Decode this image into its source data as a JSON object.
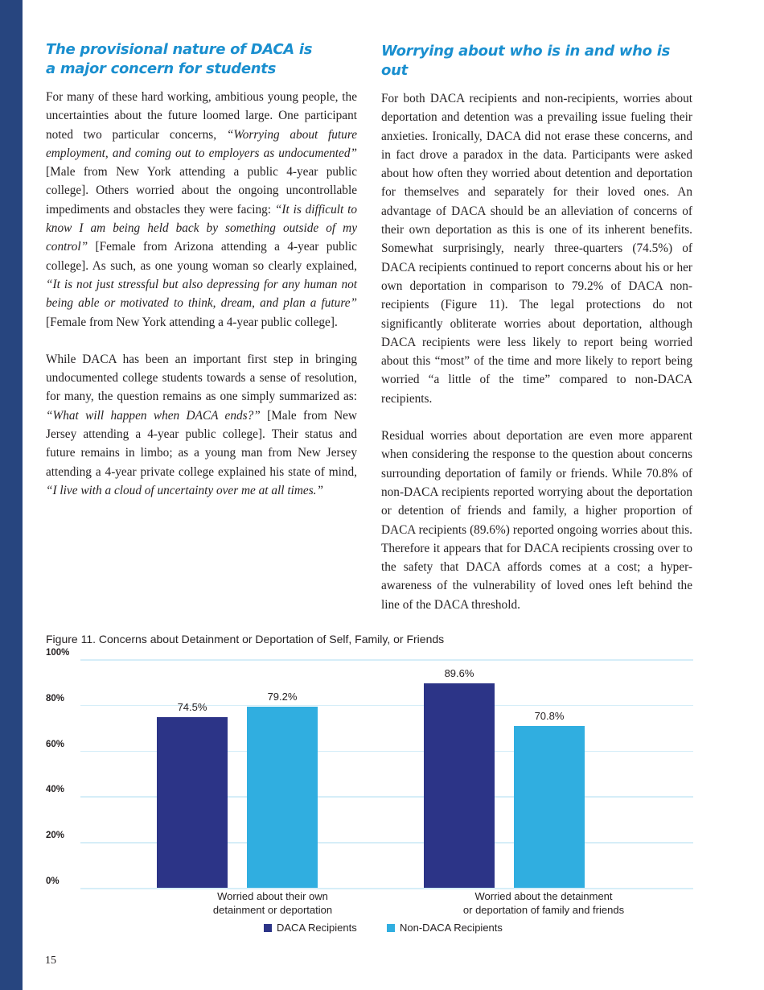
{
  "left": {
    "heading": [
      "The provisional nature of DACA is",
      "a major concern for students"
    ],
    "paragraphs": [
      [
        {
          "t": "For many of these hard working, ambitious young people, the uncertainties about the future loomed large. One participant noted two particular concerns, "
        },
        {
          "t": "“Worrying about future employment, and coming out to employers as undocumented”",
          "i": true
        },
        {
          "t": " [Male from New York attending a public 4-year public college]. Others worried about the ongoing uncontrollable impediments and obstacles they were facing: "
        },
        {
          "t": "“It is difficult to know I am being held back by something outside of my control”",
          "i": true
        },
        {
          "t": " [Female from Arizona attending a 4-year public college]. As such, as one young woman so clearly explained, "
        },
        {
          "t": "“It is not just stressful but also depressing for any human not being able or motivated to think, dream, and plan a future”",
          "i": true
        },
        {
          "t": " [Female from New York attending a 4-year public college]."
        }
      ],
      [
        {
          "t": "While DACA has been an important first step in bringing undocumented college students towards a sense of resolution, for many, the question remains as one simply summarized as: "
        },
        {
          "t": "“What will happen when DACA ends?”",
          "i": true
        },
        {
          "t": " [Male from New Jersey attending a 4-year public college].  Their status and future remains in limbo; as a young man from New Jersey attending a 4-year private college explained his state of mind, "
        },
        {
          "t": "“I live with a cloud of uncertainty over me at all times.”",
          "i": true
        }
      ]
    ]
  },
  "right": {
    "heading": [
      "Worrying about who is in and who is out"
    ],
    "paragraphs": [
      [
        {
          "t": "For both DACA recipients and non-recipients, worries about deportation and detention was a prevailing issue fueling their anxieties. Ironically, DACA did not erase these concerns, and in fact drove a paradox in the data. Participants were asked about how often they worried about detention and deportation for themselves and separately for their loved ones. An advantage of DACA should be an alleviation of concerns of their own deportation as this is one of its inherent benefits. Somewhat surprisingly, nearly three-quarters (74.5%) of DACA recipients continued to report concerns about his or her own deportation in comparison to 79.2% of DACA non-recipients (Figure 11). The legal protections do not significantly obliterate worries about deportation, although DACA recipients were less likely to report being worried about this “most” of the time and more likely to report being worried “a little of the time” compared to non-DACA recipients."
        }
      ],
      [
        {
          "t": "Residual worries about deportation are even more apparent when considering the response to the question about concerns surrounding deportation of family or friends. While 70.8% of non-DACA recipients reported worrying about the deportation or detention of friends and family, a higher proportion of DACA recipients (89.6%) reported ongoing worries about this. Therefore it appears that for DACA recipients crossing over to the safety that DACA affords comes at a cost; a hyper-awareness of the vulnerability of loved ones left behind the line of the DACA threshold."
        }
      ]
    ]
  },
  "chart_data": {
    "type": "bar",
    "title": "Figure 11. Concerns about Detainment or Deportation of Self, Family, or Friends",
    "categories": [
      [
        "Worried about their own",
        "detainment or deportation"
      ],
      [
        "Worried about the detainment",
        "or deportation of family and friends"
      ]
    ],
    "series": [
      {
        "name": "DACA Recipients",
        "values": [
          74.5,
          89.6
        ],
        "labels": [
          "74.5%",
          "89.6%"
        ],
        "color": "#2c3487"
      },
      {
        "name": "Non-DACA Recipients",
        "values": [
          79.2,
          70.8
        ],
        "labels": [
          "79.2%",
          "70.8%"
        ],
        "color": "#30aee0"
      }
    ],
    "yticks": [
      "0%",
      "20%",
      "40%",
      "60%",
      "80%",
      "100%"
    ],
    "ylim": [
      0,
      100
    ],
    "grid": true,
    "legend": "bottom"
  },
  "page_number": "15"
}
